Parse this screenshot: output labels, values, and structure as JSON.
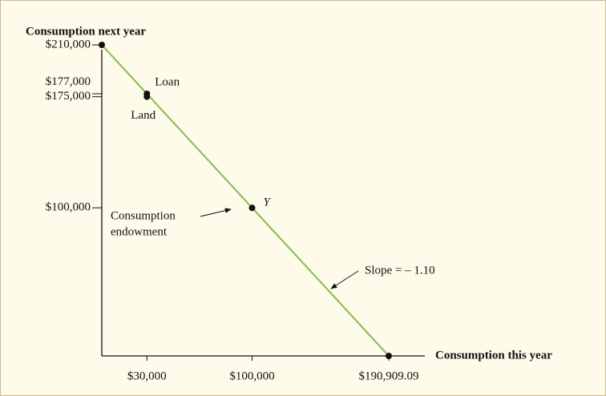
{
  "chart_data": {
    "type": "line",
    "y_label": "Consumption next year",
    "x_label": "Consumption this year",
    "xlim": [
      0,
      190909.09
    ],
    "ylim": [
      0,
      210000
    ],
    "xticks": [
      {
        "value": 30000,
        "label": "$30,000"
      },
      {
        "value": 100000,
        "label": "$100,000"
      },
      {
        "value": 190909.09,
        "label": "$190,909.09"
      }
    ],
    "yticks": [
      {
        "value": 100000,
        "label": "$100,000"
      },
      {
        "value": 175000,
        "label": "$175,000"
      },
      {
        "value": 177000,
        "label": "$177,000"
      },
      {
        "value": 210000,
        "label": "$210,000"
      }
    ],
    "series": [
      {
        "color": "#8dc060",
        "x": [
          0,
          190909.09
        ],
        "values": [
          210000,
          0
        ]
      }
    ],
    "points": [
      {
        "x": 0,
        "y": 210000
      },
      {
        "label": "Loan",
        "x": 30000,
        "y": 177000
      },
      {
        "label": "Land",
        "x": 30000,
        "y": 175000
      },
      {
        "label": "Y",
        "x": 100000,
        "y": 100000
      },
      {
        "x": 190909.09,
        "y": 0
      }
    ],
    "annotations": [
      {
        "lines": [
          "Consumption",
          "endowment"
        ]
      },
      {
        "lines": [
          "Slope = – 1.10"
        ]
      }
    ]
  }
}
